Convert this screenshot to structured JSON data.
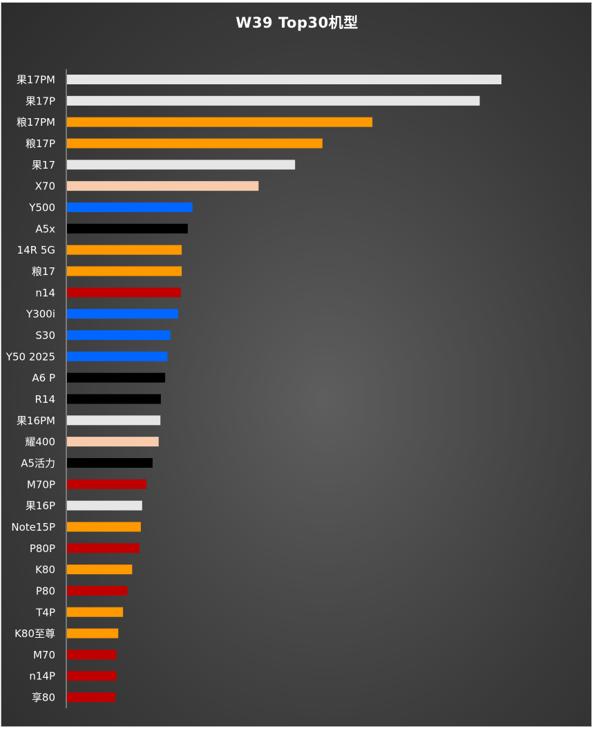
{
  "chart_data": {
    "type": "bar",
    "orientation": "horizontal",
    "title": "W39 Top30机型",
    "xlabel": "",
    "ylabel": "",
    "grid": false,
    "legend": "none",
    "xlim": [
      0,
      100
    ],
    "categories": [
      "果17PM",
      "果17P",
      "粮17PM",
      "粮17P",
      "果17",
      "X70",
      "Y500",
      "A5x",
      "14R 5G",
      "粮17",
      "n14",
      "Y300i",
      "S30",
      "Y50 2025",
      "A6 P",
      "R14",
      "果16PM",
      "耀400",
      "A5活力",
      "M70P",
      "果16P",
      "Note15P",
      "P80P",
      "K80",
      "P80",
      "T4P",
      "K80至尊",
      "M70",
      "n14P",
      "享80"
    ],
    "values": [
      100,
      95,
      70.3,
      58.8,
      52.5,
      44.1,
      28.9,
      27.8,
      26.4,
      26.4,
      26.2,
      25.6,
      23.8,
      23.1,
      22.6,
      21.6,
      21.5,
      21.1,
      19.7,
      18.3,
      17.3,
      17.0,
      16.7,
      15.0,
      13.9,
      12.9,
      11.8,
      11.4,
      11.4,
      11.1
    ],
    "bar_colors": [
      "#e6e6e6",
      "#e6e6e6",
      "#ff9900",
      "#ff9900",
      "#e6e6e6",
      "#f8cbad",
      "#0066ff",
      "#000000",
      "#ff9900",
      "#ff9900",
      "#c00000",
      "#0066ff",
      "#0066ff",
      "#0066ff",
      "#000000",
      "#000000",
      "#e6e6e6",
      "#f8cbad",
      "#000000",
      "#c00000",
      "#e6e6e6",
      "#ff9900",
      "#c00000",
      "#ff9900",
      "#c00000",
      "#ff9900",
      "#ff9900",
      "#c00000",
      "#c00000",
      "#c00000"
    ]
  },
  "colors": {
    "background_center": "#5e5e5e",
    "background_edge": "#2c2c2c",
    "axis_line": "#a6a6a6",
    "label_text": "#ffffff"
  }
}
